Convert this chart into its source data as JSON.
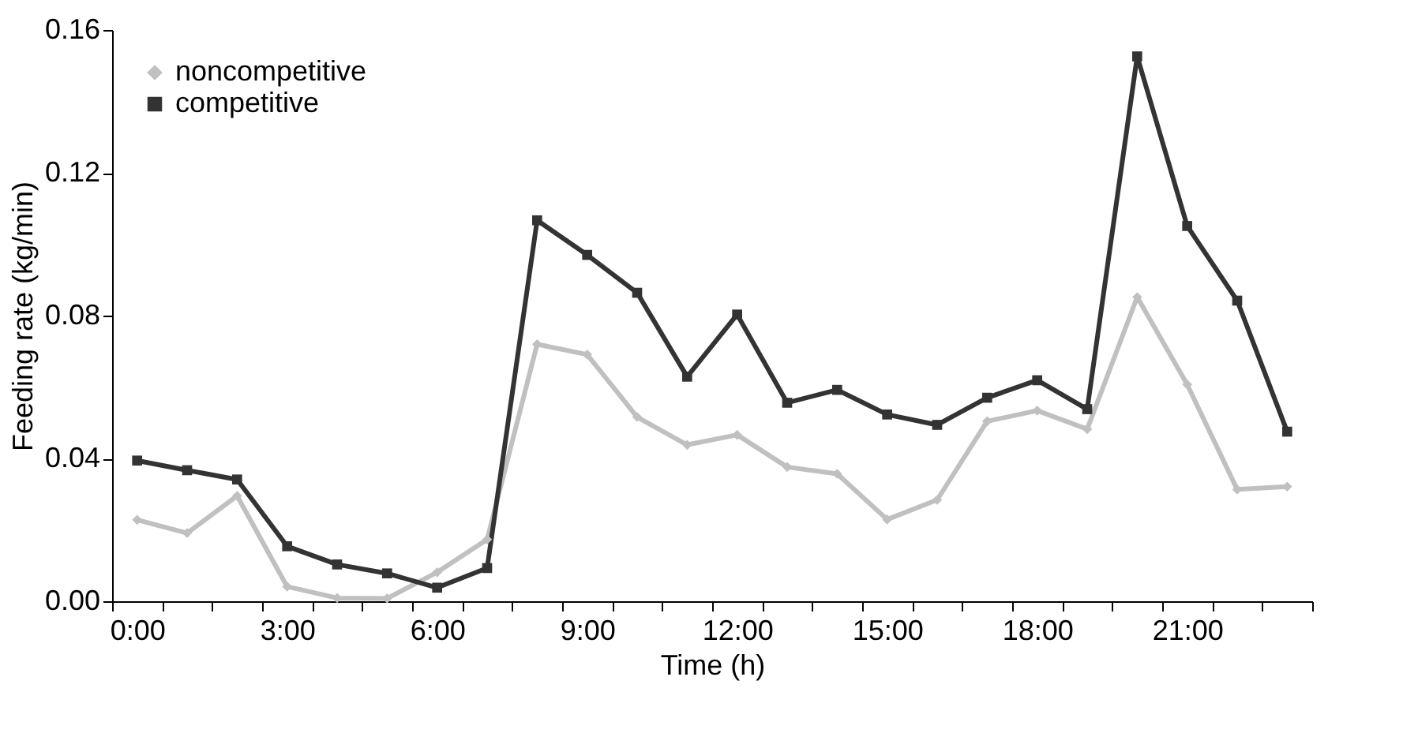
{
  "chart_data": {
    "type": "line",
    "xlabel": "Time (h)",
    "ylabel": "Feeding rate (kg/min)",
    "categories": [
      "0:00",
      null,
      null,
      "3:00",
      null,
      null,
      "6:00",
      null,
      null,
      "9:00",
      null,
      null,
      "12:00",
      null,
      null,
      "15:00",
      null,
      null,
      "18:00",
      null,
      null,
      "21:00",
      null,
      null
    ],
    "series": [
      {
        "name": "noncompetitive",
        "color": "#c0c0c0",
        "marker": "diamond",
        "values": [
          0.0228,
          0.0191,
          0.0295,
          0.0041,
          0.0009,
          0.0008,
          0.0081,
          0.0173,
          0.072,
          0.0691,
          0.0516,
          0.0438,
          0.0466,
          0.0376,
          0.0357,
          0.0229,
          0.0284,
          0.0504,
          0.0534,
          0.0482,
          0.0852,
          0.0607,
          0.0313,
          0.0321
        ]
      },
      {
        "name": "competitive",
        "color": "#333333",
        "marker": "square",
        "values": [
          0.0394,
          0.0367,
          0.0341,
          0.0154,
          0.0103,
          0.0078,
          0.0038,
          0.0093,
          0.1067,
          0.097,
          0.0864,
          0.0629,
          0.0803,
          0.0556,
          0.0592,
          0.0523,
          0.0494,
          0.057,
          0.0619,
          0.0538,
          0.1526,
          0.1051,
          0.0842,
          0.0475
        ]
      }
    ],
    "ylim": [
      0,
      0.16
    ],
    "yticks": [
      {
        "value": 0,
        "label": "0.00"
      },
      0.04,
      0.08,
      0.12,
      0.16
    ],
    "grid": false,
    "legend": "top left",
    "line_style": "solid"
  }
}
